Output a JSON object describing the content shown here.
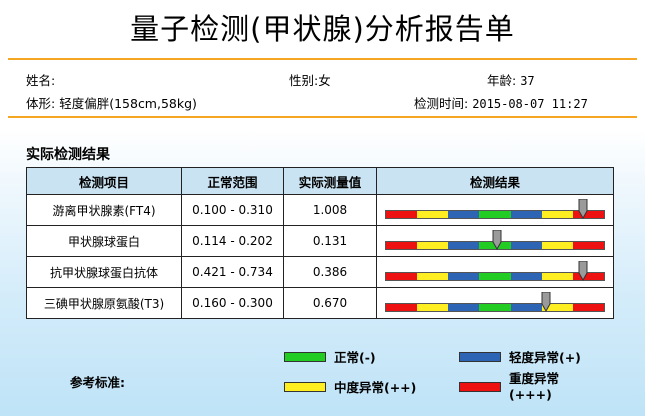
{
  "report": {
    "title": "量子检测(甲状腺)分析报告单"
  },
  "patient": {
    "name_label": "姓名:",
    "gender_label": "性别:",
    "gender": "女",
    "age_label": "年龄:",
    "age": "37",
    "body_label": "体形:",
    "body": "轻度偏胖(158cm,58kg)",
    "time_label": "检测时间:",
    "time": "2015-08-07 11:27"
  },
  "results": {
    "section_title": "实际检测结果",
    "headers": [
      "检测项目",
      "正常范围",
      "实际测量值",
      "检测结果"
    ],
    "rows": [
      {
        "item": "游离甲状腺素(FT4)",
        "range": "0.100 - 0.310",
        "value": "1.008",
        "marker_position": 0.9
      },
      {
        "item": "甲状腺球蛋白",
        "range": "0.114 - 0.202",
        "value": "0.131",
        "marker_position": 0.51
      },
      {
        "item": "抗甲状腺球蛋白抗体",
        "range": "0.421 - 0.734",
        "value": "0.386",
        "marker_position": 0.9
      },
      {
        "item": "三碘甲状腺原氨酸(T3)",
        "range": "0.160 - 0.300",
        "value": "0.670",
        "marker_position": 0.73
      }
    ],
    "bar_segments": [
      "red",
      "yellow",
      "blue",
      "green",
      "blue",
      "yellow",
      "red"
    ]
  },
  "legend": {
    "label": "参考标准:",
    "items": [
      {
        "key": "normal",
        "text": "正常(-)",
        "color": "#22cc22"
      },
      {
        "key": "mild",
        "text": "轻度异常(+)",
        "color": "#2e64b4"
      },
      {
        "key": "moderate",
        "text": "中度异常(++)",
        "color": "#ffee22"
      },
      {
        "key": "severe",
        "text": "重度异常(+++)",
        "color": "#ee1111"
      }
    ]
  },
  "colors": {
    "red": "#ee1111",
    "yellow": "#ffee22",
    "blue": "#2e64b4",
    "green": "#22cc22",
    "rule": "#f5a623",
    "header_bg": "#c9e3f2"
  }
}
